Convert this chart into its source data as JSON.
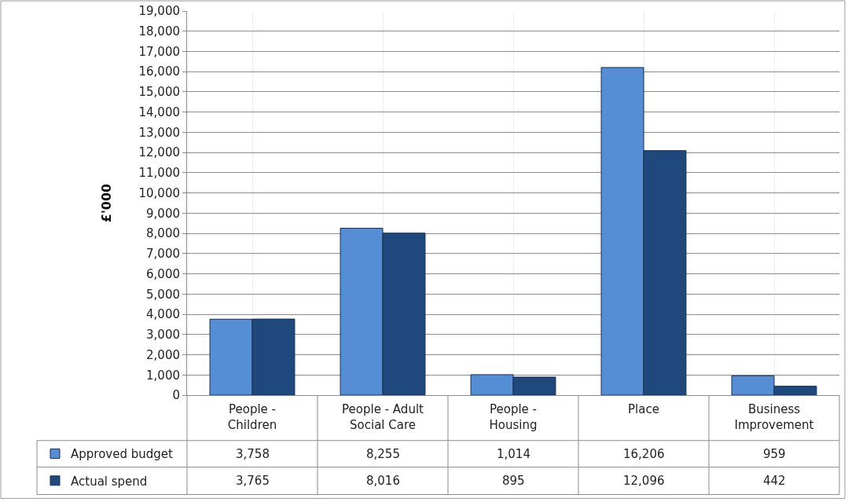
{
  "chart_data": {
    "type": "bar",
    "ylabel": "£'000",
    "categories": [
      "People - Children",
      "People - Adult Social Care",
      "People - Housing",
      "Place",
      "Business Improvement"
    ],
    "series": [
      {
        "name": "Approved budget",
        "color": "#558ed5",
        "values": [
          3758,
          8255,
          1014,
          16206,
          959
        ],
        "value_labels": [
          "3,758",
          "8,255",
          "1,014",
          "16,206",
          "959"
        ]
      },
      {
        "name": "Actual spend",
        "color": "#1f497d",
        "values": [
          3765,
          8016,
          895,
          12096,
          442
        ],
        "value_labels": [
          "3,765",
          "8,016",
          "895",
          "12,096",
          "442"
        ]
      }
    ],
    "ylim": [
      0,
      19000
    ],
    "yticks": [
      {
        "value": 0,
        "label": "0"
      },
      {
        "value": 1000,
        "label": "1,000"
      },
      {
        "value": 2000,
        "label": "2,000"
      },
      {
        "value": 3000,
        "label": "3,000"
      },
      {
        "value": 4000,
        "label": "4,000"
      },
      {
        "value": 5000,
        "label": "5,000"
      },
      {
        "value": 6000,
        "label": "6,000"
      },
      {
        "value": 7000,
        "label": "7,000"
      },
      {
        "value": 8000,
        "label": "8,000"
      },
      {
        "value": 9000,
        "label": "9,000"
      },
      {
        "value": 10000,
        "label": "10,000"
      },
      {
        "value": 11000,
        "label": "11,000"
      },
      {
        "value": 12000,
        "label": "12,000"
      },
      {
        "value": 13000,
        "label": "13,000"
      },
      {
        "value": 14000,
        "label": "14,000"
      },
      {
        "value": 15000,
        "label": "15,000"
      },
      {
        "value": 16000,
        "label": "16,000"
      },
      {
        "value": 17000,
        "label": "17,000"
      },
      {
        "value": 18000,
        "label": "18,000"
      },
      {
        "value": 19000,
        "label": "19,000"
      }
    ],
    "grid": true,
    "legend": "bottom left"
  }
}
